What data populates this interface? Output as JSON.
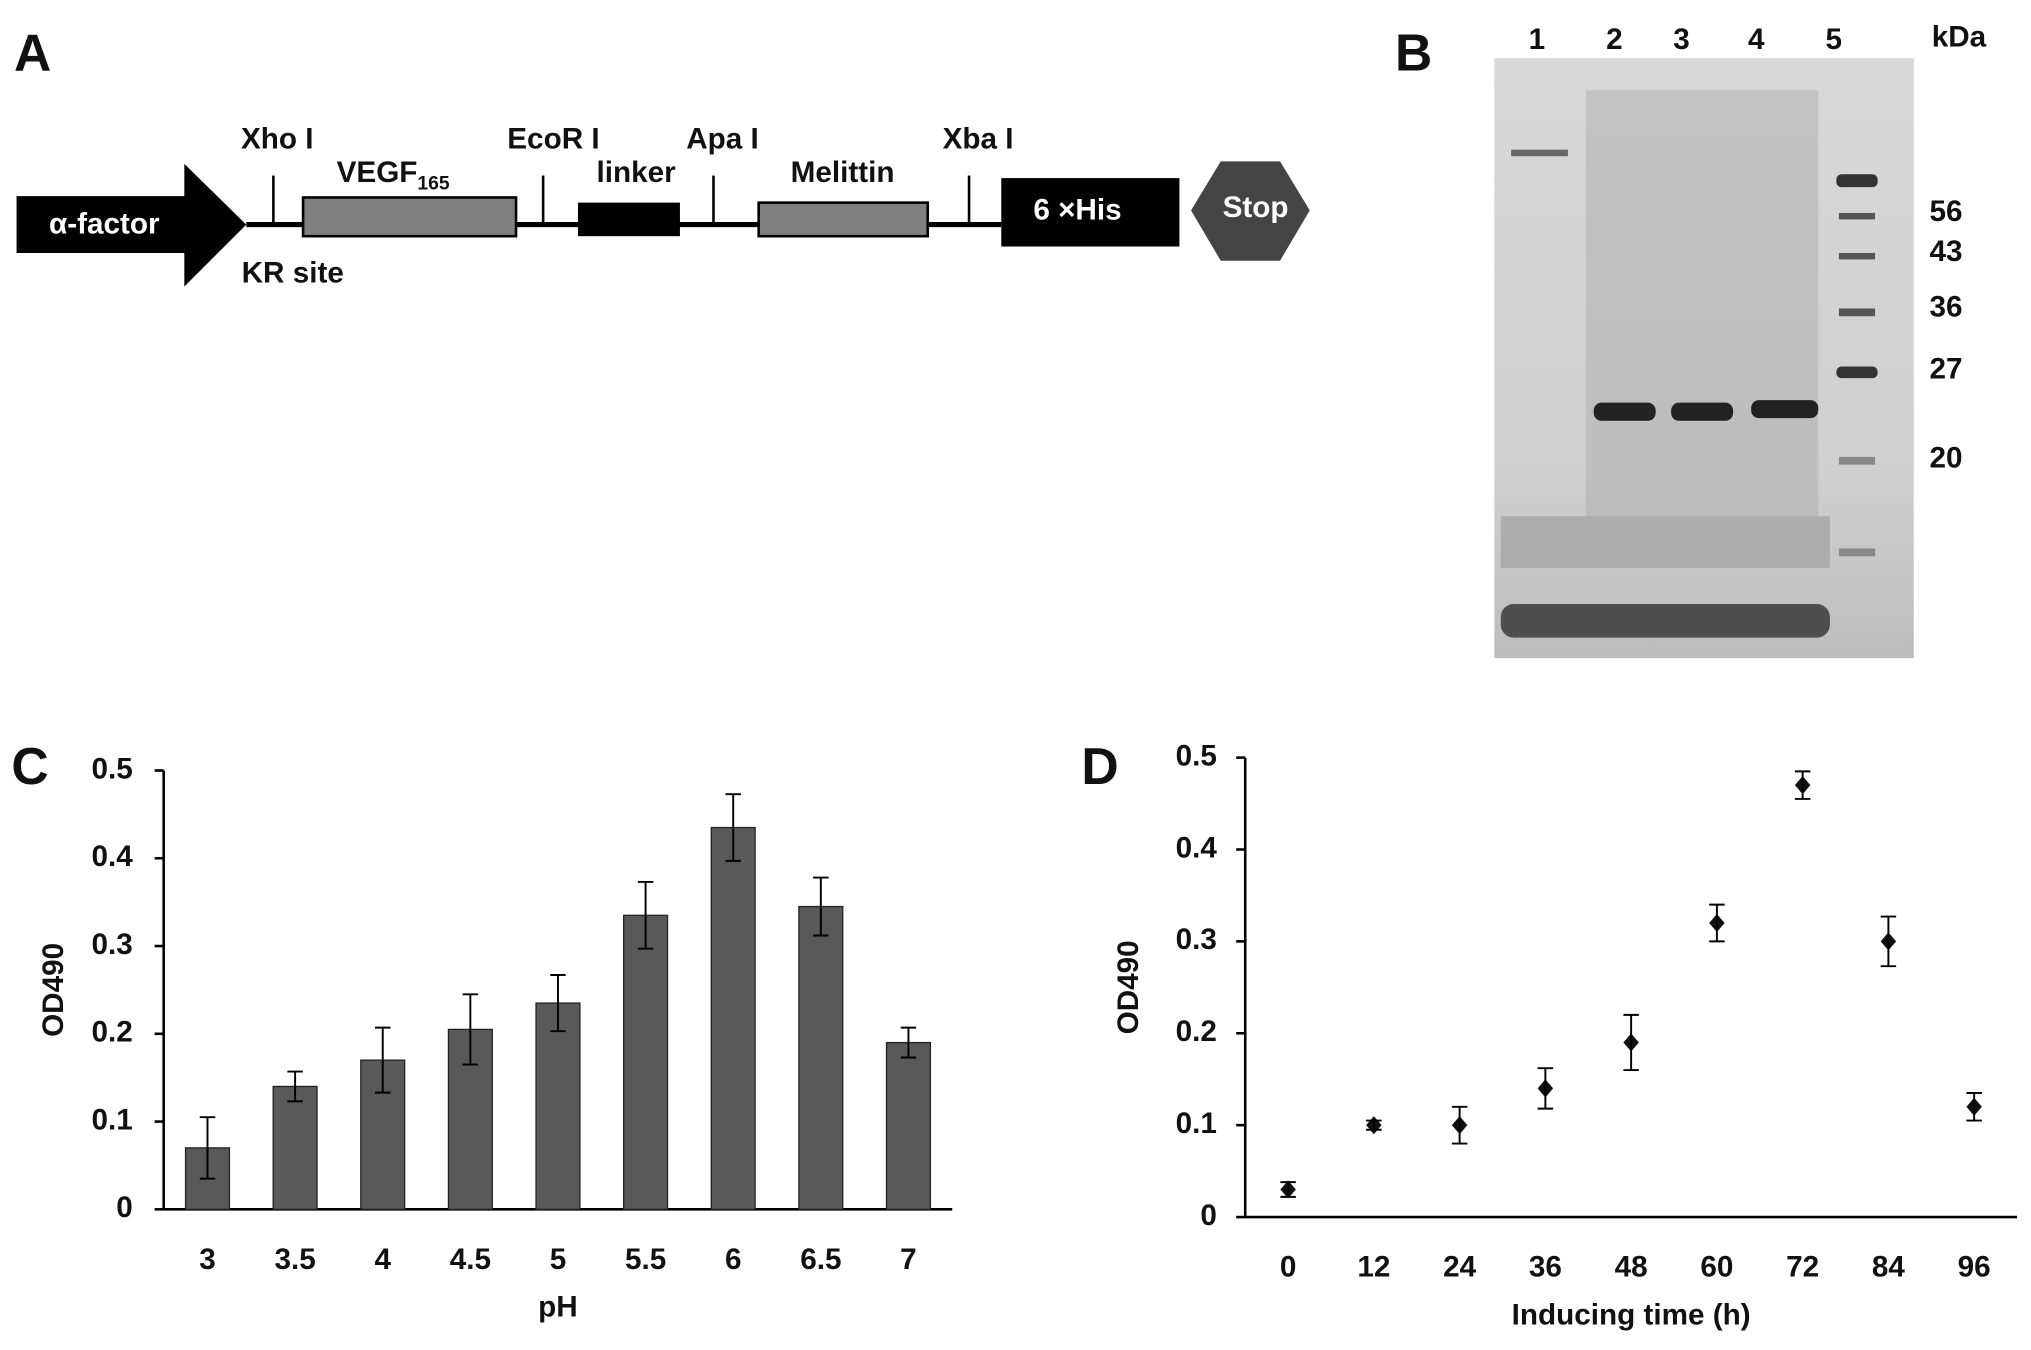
{
  "panel_labels": [
    "A",
    "B",
    "C",
    "D"
  ],
  "diagram": {
    "alpha_factor": "α-factor",
    "kr_site": "KR site",
    "xho": "Xho I",
    "vegf": "VEGF",
    "vegf_sub": "165",
    "ecor": "EcoR I",
    "linker": "linker",
    "apa": "Apa I",
    "melittin": "Melittin",
    "xba": "Xba I",
    "his": "6 ×His",
    "stop": "Stop"
  },
  "gel": {
    "lanes": [
      "1",
      "2",
      "3",
      "4",
      "5"
    ],
    "unit": "kDa",
    "markers": [
      "56",
      "43",
      "36",
      "27",
      "20"
    ]
  },
  "chart_data": [
    {
      "type": "bar",
      "x_label": "pH",
      "y_label": "OD490",
      "categories": [
        "3",
        "3.5",
        "4",
        "4.5",
        "5",
        "5.5",
        "6",
        "6.5",
        "7"
      ],
      "values": [
        0.07,
        0.14,
        0.17,
        0.205,
        0.235,
        0.335,
        0.435,
        0.345,
        0.19
      ],
      "errors": [
        0.035,
        0.017,
        0.037,
        0.04,
        0.032,
        0.038,
        0.038,
        0.033,
        0.017
      ],
      "color": "#595959",
      "ylim": [
        0,
        0.5
      ],
      "yticks": [
        0,
        0.1,
        0.2,
        0.3,
        0.4,
        0.5
      ]
    },
    {
      "type": "scatter",
      "x_label": "Inducing time (h)",
      "y_label": "OD490",
      "categories": [
        "0",
        "12",
        "24",
        "36",
        "48",
        "60",
        "72",
        "84",
        "96"
      ],
      "values": [
        0.03,
        0.1,
        0.1,
        0.14,
        0.19,
        0.32,
        0.47,
        0.3,
        0.12
      ],
      "errors": [
        0.008,
        0.005,
        0.02,
        0.022,
        0.03,
        0.02,
        0.015,
        0.027,
        0.015
      ],
      "color": "#111111",
      "ylim": [
        0,
        0.5
      ],
      "yticks": [
        0,
        0.1,
        0.2,
        0.3,
        0.4,
        0.5
      ]
    }
  ]
}
